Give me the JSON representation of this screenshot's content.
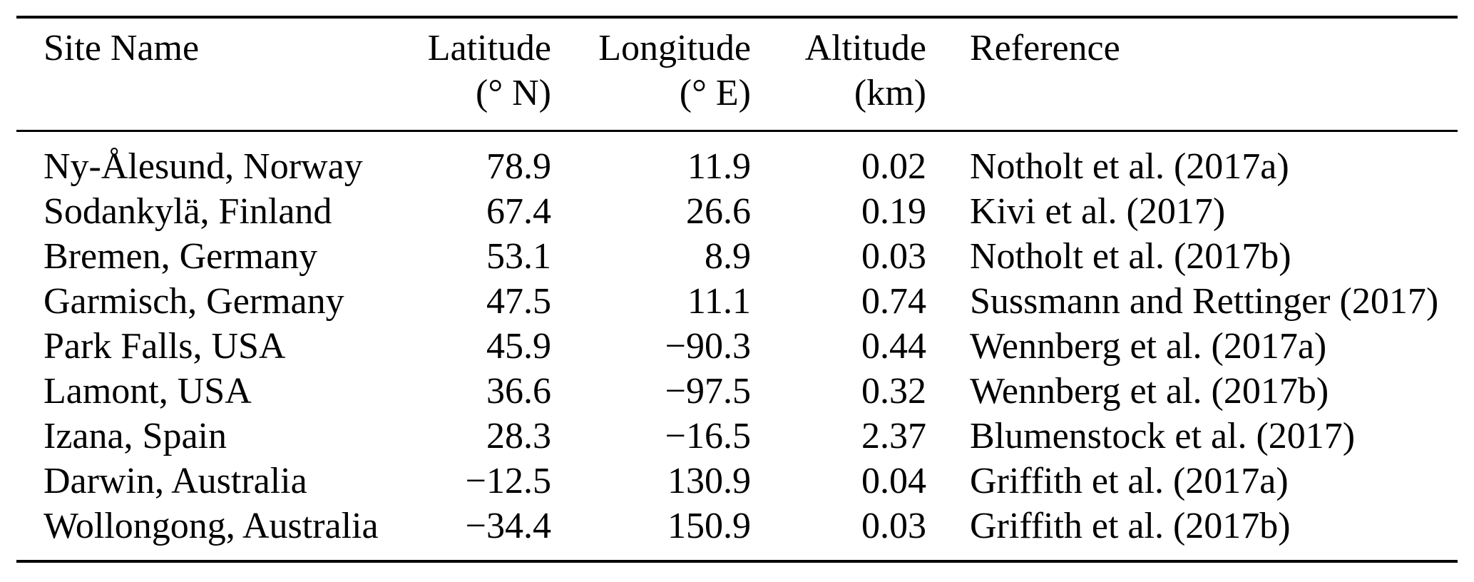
{
  "page": {
    "background": "#ffffff",
    "text_color": "#000000",
    "rule_color": "#000000"
  },
  "table": {
    "columns": [
      {
        "label": "Site Name",
        "unit": ""
      },
      {
        "label": "Latitude",
        "unit": "(° N)"
      },
      {
        "label": "Longitude",
        "unit": "(° E)"
      },
      {
        "label": "Altitude",
        "unit": "(km)"
      },
      {
        "label": "Reference",
        "unit": ""
      }
    ],
    "rows": [
      {
        "site": "Ny-Ålesund, Norway",
        "latitude": "78.9",
        "longitude": "11.9",
        "altitude": "0.02",
        "reference": "Notholt et al. (2017a)"
      },
      {
        "site": "Sodankylä, Finland",
        "latitude": "67.4",
        "longitude": "26.6",
        "altitude": "0.19",
        "reference": "Kivi et al. (2017)"
      },
      {
        "site": "Bremen, Germany",
        "latitude": "53.1",
        "longitude": "8.9",
        "altitude": "0.03",
        "reference": "Notholt et al. (2017b)"
      },
      {
        "site": "Garmisch, Germany",
        "latitude": "47.5",
        "longitude": "11.1",
        "altitude": "0.74",
        "reference": "Sussmann and Rettinger (2017)"
      },
      {
        "site": "Park Falls, USA",
        "latitude": "45.9",
        "longitude": "−90.3",
        "altitude": "0.44",
        "reference": "Wennberg et al. (2017a)"
      },
      {
        "site": "Lamont, USA",
        "latitude": "36.6",
        "longitude": "−97.5",
        "altitude": "0.32",
        "reference": "Wennberg et al. (2017b)"
      },
      {
        "site": "Izana, Spain",
        "latitude": "28.3",
        "longitude": "−16.5",
        "altitude": "2.37",
        "reference": "Blumenstock et al. (2017)"
      },
      {
        "site": "Darwin, Australia",
        "latitude": "−12.5",
        "longitude": "130.9",
        "altitude": "0.04",
        "reference": "Griffith et al. (2017a)"
      },
      {
        "site": "Wollongong, Australia",
        "latitude": "−34.4",
        "longitude": "150.9",
        "altitude": "0.03",
        "reference": "Griffith et al. (2017b)"
      }
    ]
  }
}
